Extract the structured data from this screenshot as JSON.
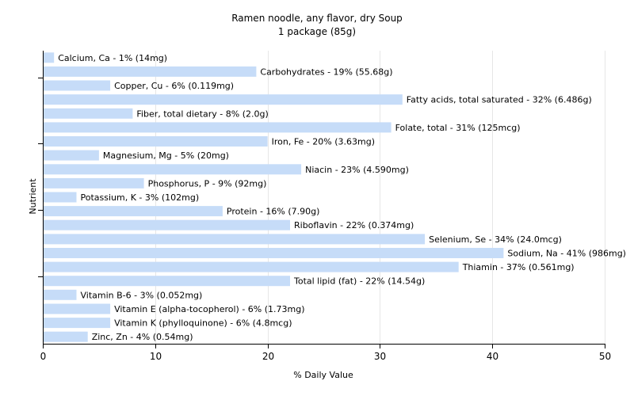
{
  "chart_data": {
    "type": "bar",
    "orientation": "horizontal",
    "title": "Ramen noodle, any flavor, dry Soup",
    "subtitle": "1 package (85g)",
    "xlabel": "% Daily Value",
    "ylabel": "Nutrient",
    "xlim": [
      0,
      50
    ],
    "xticks": [
      0,
      10,
      20,
      30,
      40,
      50
    ],
    "grid": true,
    "bar_color": "#c6dcf8",
    "grid_color": "#e6e6e6",
    "categories": [
      "Calcium, Ca - 1% (14mg)",
      "Carbohydrates - 19% (55.68g)",
      "Copper, Cu - 6% (0.119mg)",
      "Fatty acids, total saturated - 32% (6.486g)",
      "Fiber, total dietary - 8% (2.0g)",
      "Folate, total - 31% (125mcg)",
      "Iron, Fe - 20% (3.63mg)",
      "Magnesium, Mg - 5% (20mg)",
      "Niacin - 23% (4.590mg)",
      "Phosphorus, P - 9% (92mg)",
      "Potassium, K - 3% (102mg)",
      "Protein - 16% (7.90g)",
      "Riboflavin - 22% (0.374mg)",
      "Selenium, Se - 34% (24.0mcg)",
      "Sodium, Na - 41% (986mg)",
      "Thiamin - 37% (0.561mg)",
      "Total lipid (fat) - 22% (14.54g)",
      "Vitamin B-6 - 3% (0.052mg)",
      "Vitamin E (alpha-tocopherol) - 6% (1.73mg)",
      "Vitamin K (phylloquinone) - 6% (4.8mcg)",
      "Zinc, Zn - 4% (0.54mg)"
    ],
    "values": [
      1,
      19,
      6,
      32,
      8,
      31,
      20,
      5,
      23,
      9,
      3,
      16,
      22,
      34,
      41,
      37,
      22,
      3,
      6,
      6,
      4
    ]
  }
}
